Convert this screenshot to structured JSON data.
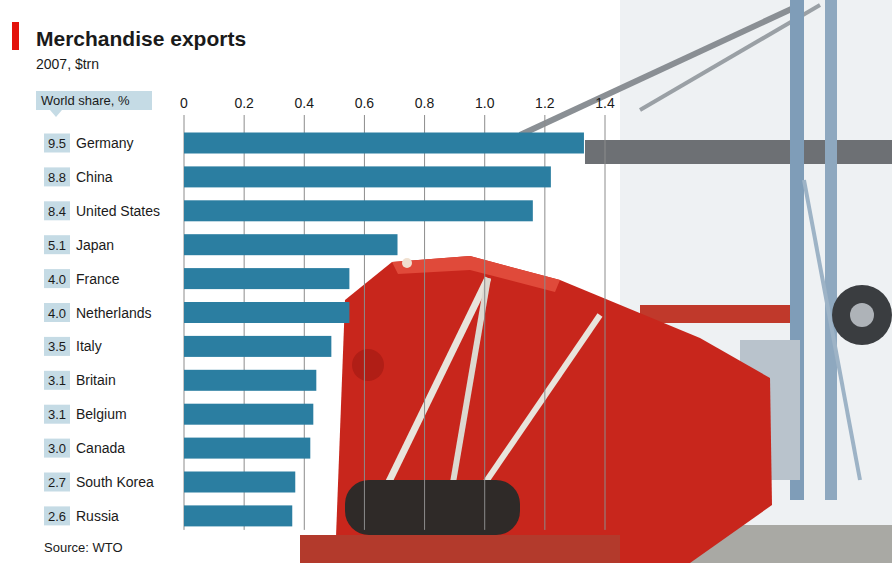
{
  "chart_data": {
    "type": "bar",
    "orientation": "horizontal",
    "title": "Merchandise exports",
    "subtitle": "2007, $trn",
    "categories": [
      "Germany",
      "China",
      "United States",
      "Japan",
      "France",
      "Netherlands",
      "Italy",
      "Britain",
      "Belgium",
      "Canada",
      "South Korea",
      "Russia"
    ],
    "values": [
      1.33,
      1.22,
      1.16,
      0.71,
      0.55,
      0.55,
      0.49,
      0.44,
      0.43,
      0.42,
      0.37,
      0.36
    ],
    "color": "#2b7ea1",
    "xlim": [
      0,
      1.4
    ],
    "xticks": [
      0,
      0.2,
      0.4,
      0.6,
      0.8,
      {
        "value": 1,
        "label": "1.0"
      },
      1.2,
      1.4
    ],
    "grid": true,
    "world_share": {
      "title": "World share, %",
      "values": [
        9.5,
        8.8,
        8.4,
        5.1,
        4.0,
        4.0,
        3.5,
        3.1,
        3.1,
        3.0,
        2.7,
        2.6
      ],
      "value_labels": [
        "9.5",
        "8.8",
        "8.4",
        "5.1",
        "4.0",
        "4.0",
        "3.5",
        "3.1",
        "3.1",
        "3.0",
        "2.7",
        "2.6"
      ]
    },
    "source": "Source: WTO"
  }
}
